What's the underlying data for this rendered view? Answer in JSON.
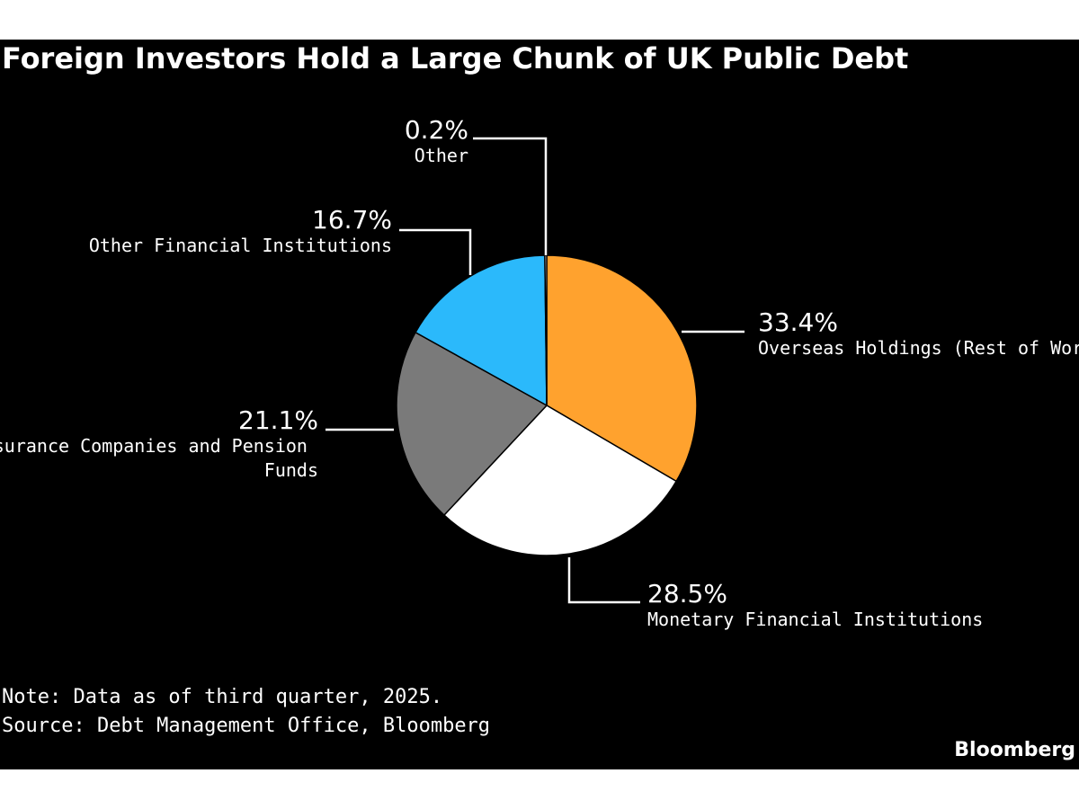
{
  "chart_data": {
    "type": "pie",
    "title": "Foreign Investors Hold a Large Chunk of UK Public Debt",
    "slices": [
      {
        "label": "Overseas Holdings (Rest of World)",
        "value": 33.4,
        "value_label": "33.4%",
        "color": "#FFA22E"
      },
      {
        "label": "Monetary Financial Institutions",
        "value": 28.5,
        "value_label": "28.5%",
        "color": "#FFFFFF"
      },
      {
        "label": "Insurance Companies and Pension Funds",
        "value": 21.1,
        "value_label": "21.1%",
        "color": "#7A7A7A"
      },
      {
        "label": "Other Financial Institutions",
        "value": 16.7,
        "value_label": "16.7%",
        "color": "#2BB9FB"
      },
      {
        "label": "Other",
        "value": 0.2,
        "value_label": "0.2%",
        "color": "#FFFFFF"
      }
    ],
    "start": "12 o'clock",
    "direction": "clockwise"
  },
  "notes": {
    "note": "Note: Data as of third quarter, 2025.",
    "source": "Source: Debt Management Office, Bloomberg"
  },
  "brand": "Bloomberg",
  "colors": {
    "background": "#000000",
    "text": "#FFFFFF"
  }
}
